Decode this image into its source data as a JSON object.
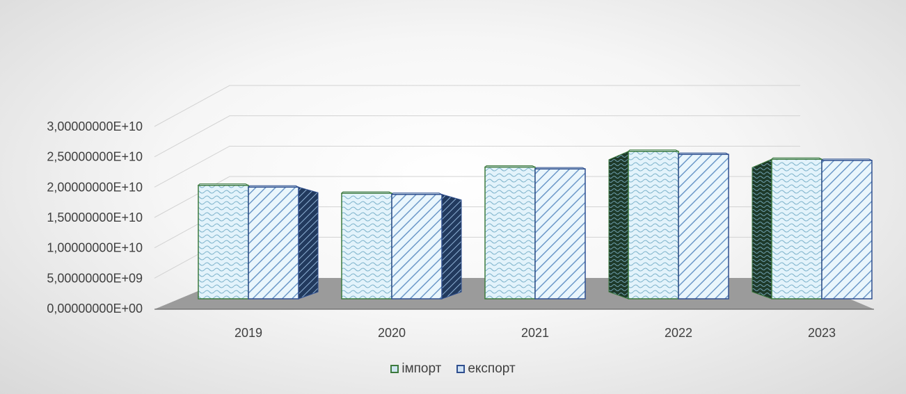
{
  "chart_data": {
    "type": "bar",
    "categories": [
      "2019",
      "2020",
      "2021",
      "2022",
      "2023"
    ],
    "series": [
      {
        "name": "імпорт",
        "values": [
          18700000000,
          17400000000,
          21700000000,
          24300000000,
          23000000000
        ]
      },
      {
        "name": "експорт",
        "values": [
          18400000000,
          17200000000,
          21400000000,
          23800000000,
          22800000000
        ]
      }
    ],
    "y_ticks": [
      "0,00000000E+00",
      "5,00000000E+09",
      "1,00000000E+10",
      "1,50000000E+10",
      "2,00000000E+10",
      "2,50000000E+10",
      "3,00000000E+10"
    ],
    "ylim": [
      0,
      30000000000
    ],
    "title": "",
    "xlabel": "",
    "ylabel": "",
    "legend_position": "bottom",
    "grid": true
  },
  "colors": {
    "import_stroke": "#3d7a3d",
    "import_fill": "#e3f3fb",
    "export_stroke": "#2f4f8f",
    "export_fill": "#eaf6fc",
    "floor": "#9e9e9e"
  }
}
